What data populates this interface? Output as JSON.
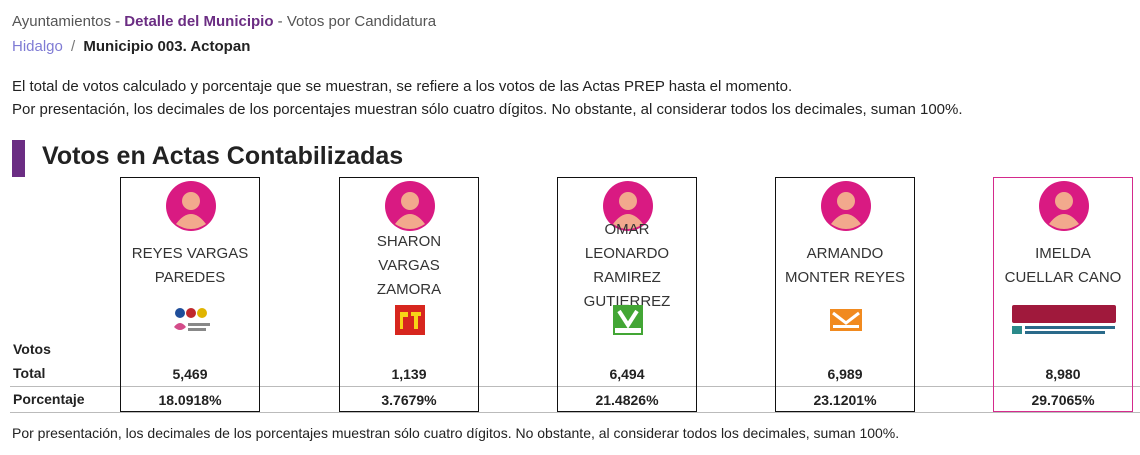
{
  "breadcrumb": {
    "section": "Ayuntamientos",
    "separator": "-",
    "page": "Detalle del Municipio",
    "view": "Votos por Candidatura"
  },
  "location": {
    "state": "Hidalgo",
    "separator": "/",
    "municipality": "Municipio 003. Actopan"
  },
  "notes": [
    "El total de votos calculado y porcentaje que se muestran, se refiere a los votos de las Actas PREP hasta el momento.",
    "Por presentación, los decimales de los porcentajes muestran sólo cuatro dígitos. No obstante, al considerar todos los decimales, suman 100%."
  ],
  "heading": "Votos en Actas Contabilizadas",
  "row_labels": {
    "votes_a": "Votos",
    "votes_b": "Total",
    "percentage": "Porcentaje"
  },
  "candidates": [
    {
      "name": "REYES VARGAS PAREDES",
      "votes": "5,469",
      "percentage": "18.0918%"
    },
    {
      "name": "SHARON VARGAS ZAMORA",
      "votes": "1,139",
      "percentage": "3.7679%"
    },
    {
      "name": "OMAR LEONARDO RAMIREZ GUTIERREZ",
      "votes": "6,494",
      "percentage": "21.4826%"
    },
    {
      "name": "ARMANDO MONTER REYES",
      "votes": "6,989",
      "percentage": "23.1201%"
    },
    {
      "name": "IMELDA CUELLAR CANO",
      "votes": "8,980",
      "percentage": "29.7065%"
    }
  ],
  "footnote": "Por presentación, los decimales de los porcentajes muestran sólo cuatro dígitos. No obstante, al considerar todos los decimales, suman 100%."
}
